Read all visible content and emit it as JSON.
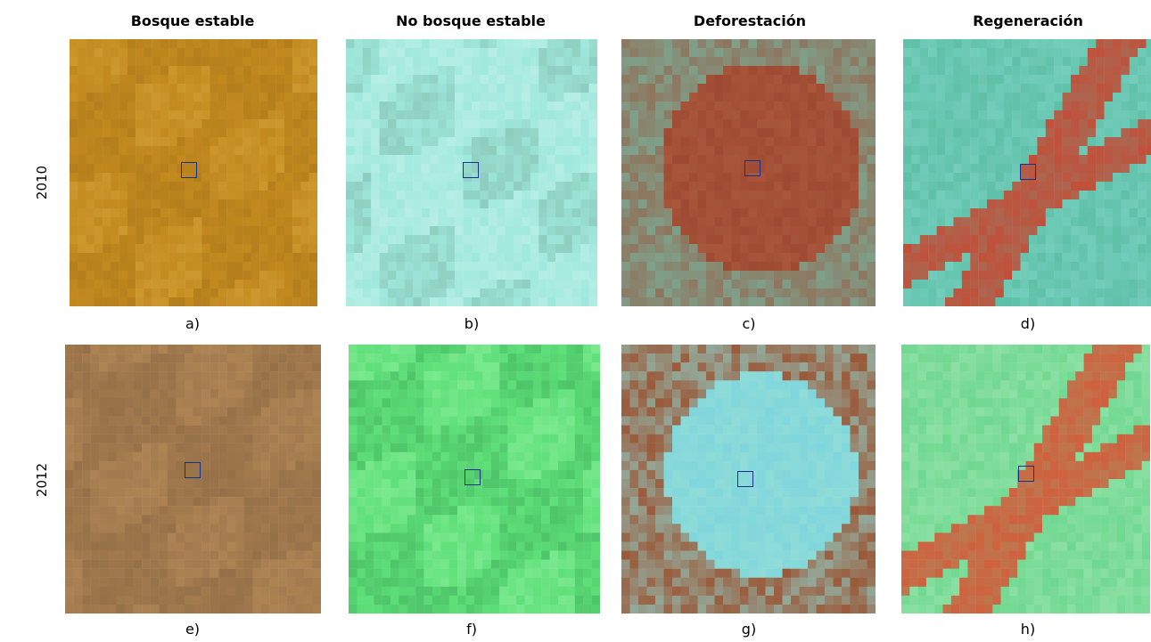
{
  "columns": [
    "Bosque estable",
    "No bosque estable",
    "Deforestación",
    "Regeneración"
  ],
  "rows": [
    "2010",
    "2012"
  ],
  "panels": [
    {
      "label": "a)",
      "base": "#c28a1e",
      "accent": "#a8741a",
      "light": "#d6a43a"
    },
    {
      "label": "b)",
      "base": "#9fe8dc",
      "accent": "#c9f3ee",
      "light": "#7fb8a8"
    },
    {
      "label": "c)",
      "base": "#9e4a32",
      "accent": "#7fa08a",
      "light": "#b86a4a"
    },
    {
      "label": "d)",
      "base": "#5fc0a8",
      "accent": "#c0503a",
      "light": "#7fd6c8"
    },
    {
      "label": "e)",
      "base": "#a27a4e",
      "accent": "#8c6842",
      "light": "#b88c58"
    },
    {
      "label": "f)",
      "base": "#5fe07a",
      "accent": "#3fae5a",
      "light": "#8ff09e"
    },
    {
      "label": "g)",
      "base": "#8fdcd8",
      "accent": "#9a5a3a",
      "light": "#6fd0e0"
    },
    {
      "label": "h)",
      "base": "#6fd890",
      "accent": "#d0603e",
      "light": "#9fe6b0"
    }
  ]
}
